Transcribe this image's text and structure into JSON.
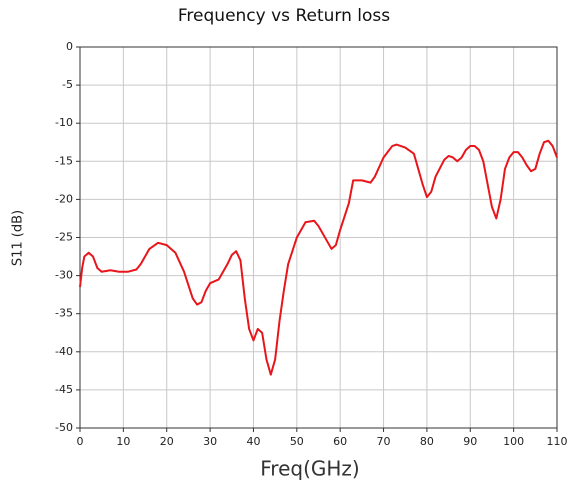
{
  "chart_data": {
    "type": "line",
    "title": "Frequency vs Return loss",
    "xlabel": "Freq(GHz)",
    "ylabel": "S11 (dB)",
    "x": [
      0,
      0.5,
      1,
      2,
      3,
      4,
      5,
      7,
      9,
      11,
      13,
      14,
      16,
      18,
      20,
      22,
      24,
      26,
      27,
      28,
      29,
      30,
      32,
      34,
      35,
      36,
      37,
      38,
      39,
      40,
      41,
      42,
      43,
      44,
      45,
      46,
      47,
      48,
      50,
      52,
      54,
      55,
      57,
      58,
      59,
      60,
      62,
      63,
      65,
      67,
      68,
      70,
      72,
      73,
      75,
      77,
      79,
      80,
      81,
      82,
      84,
      85,
      86,
      87,
      88,
      89,
      90,
      91,
      92,
      93,
      94,
      95,
      96,
      97,
      98,
      99,
      100,
      101,
      102,
      103,
      104,
      105,
      106,
      107,
      108,
      109,
      110
    ],
    "series": [
      {
        "name": "S11",
        "color": "#e8151b",
        "values": [
          -31.5,
          -29,
          -27.5,
          -27,
          -27.5,
          -29,
          -29.5,
          -29.3,
          -29.5,
          -29.5,
          -29.2,
          -28.5,
          -26.5,
          -25.7,
          -26,
          -27,
          -29.5,
          -33,
          -33.8,
          -33.5,
          -32,
          -31,
          -30.5,
          -28.5,
          -27.3,
          -26.8,
          -28,
          -33,
          -37,
          -38.5,
          -37,
          -37.5,
          -41,
          -43,
          -41,
          -36,
          -32,
          -28.5,
          -25,
          -23,
          -22.8,
          -23.5,
          -25.5,
          -26.5,
          -26,
          -24,
          -20.5,
          -17.5,
          -17.5,
          -17.8,
          -17,
          -14.5,
          -13,
          -12.8,
          -13.2,
          -14,
          -18,
          -19.7,
          -19,
          -17,
          -14.8,
          -14.3,
          -14.5,
          -15,
          -14.5,
          -13.5,
          -13,
          -13,
          -13.5,
          -15,
          -18,
          -21,
          -22.5,
          -20,
          -16,
          -14.5,
          -13.8,
          -13.8,
          -14.5,
          -15.5,
          -16.3,
          -16,
          -14,
          -12.5,
          -12.3,
          -13,
          -14.5
        ]
      }
    ],
    "xlim": [
      0,
      110
    ],
    "xticks": [
      0,
      10,
      20,
      30,
      40,
      50,
      60,
      70,
      80,
      90,
      100,
      110
    ],
    "ylim": [
      -50,
      0
    ],
    "yticks": [
      -50,
      -45,
      -40,
      -35,
      -30,
      -25,
      -20,
      -15,
      -10,
      -5,
      0
    ],
    "grid": true
  }
}
